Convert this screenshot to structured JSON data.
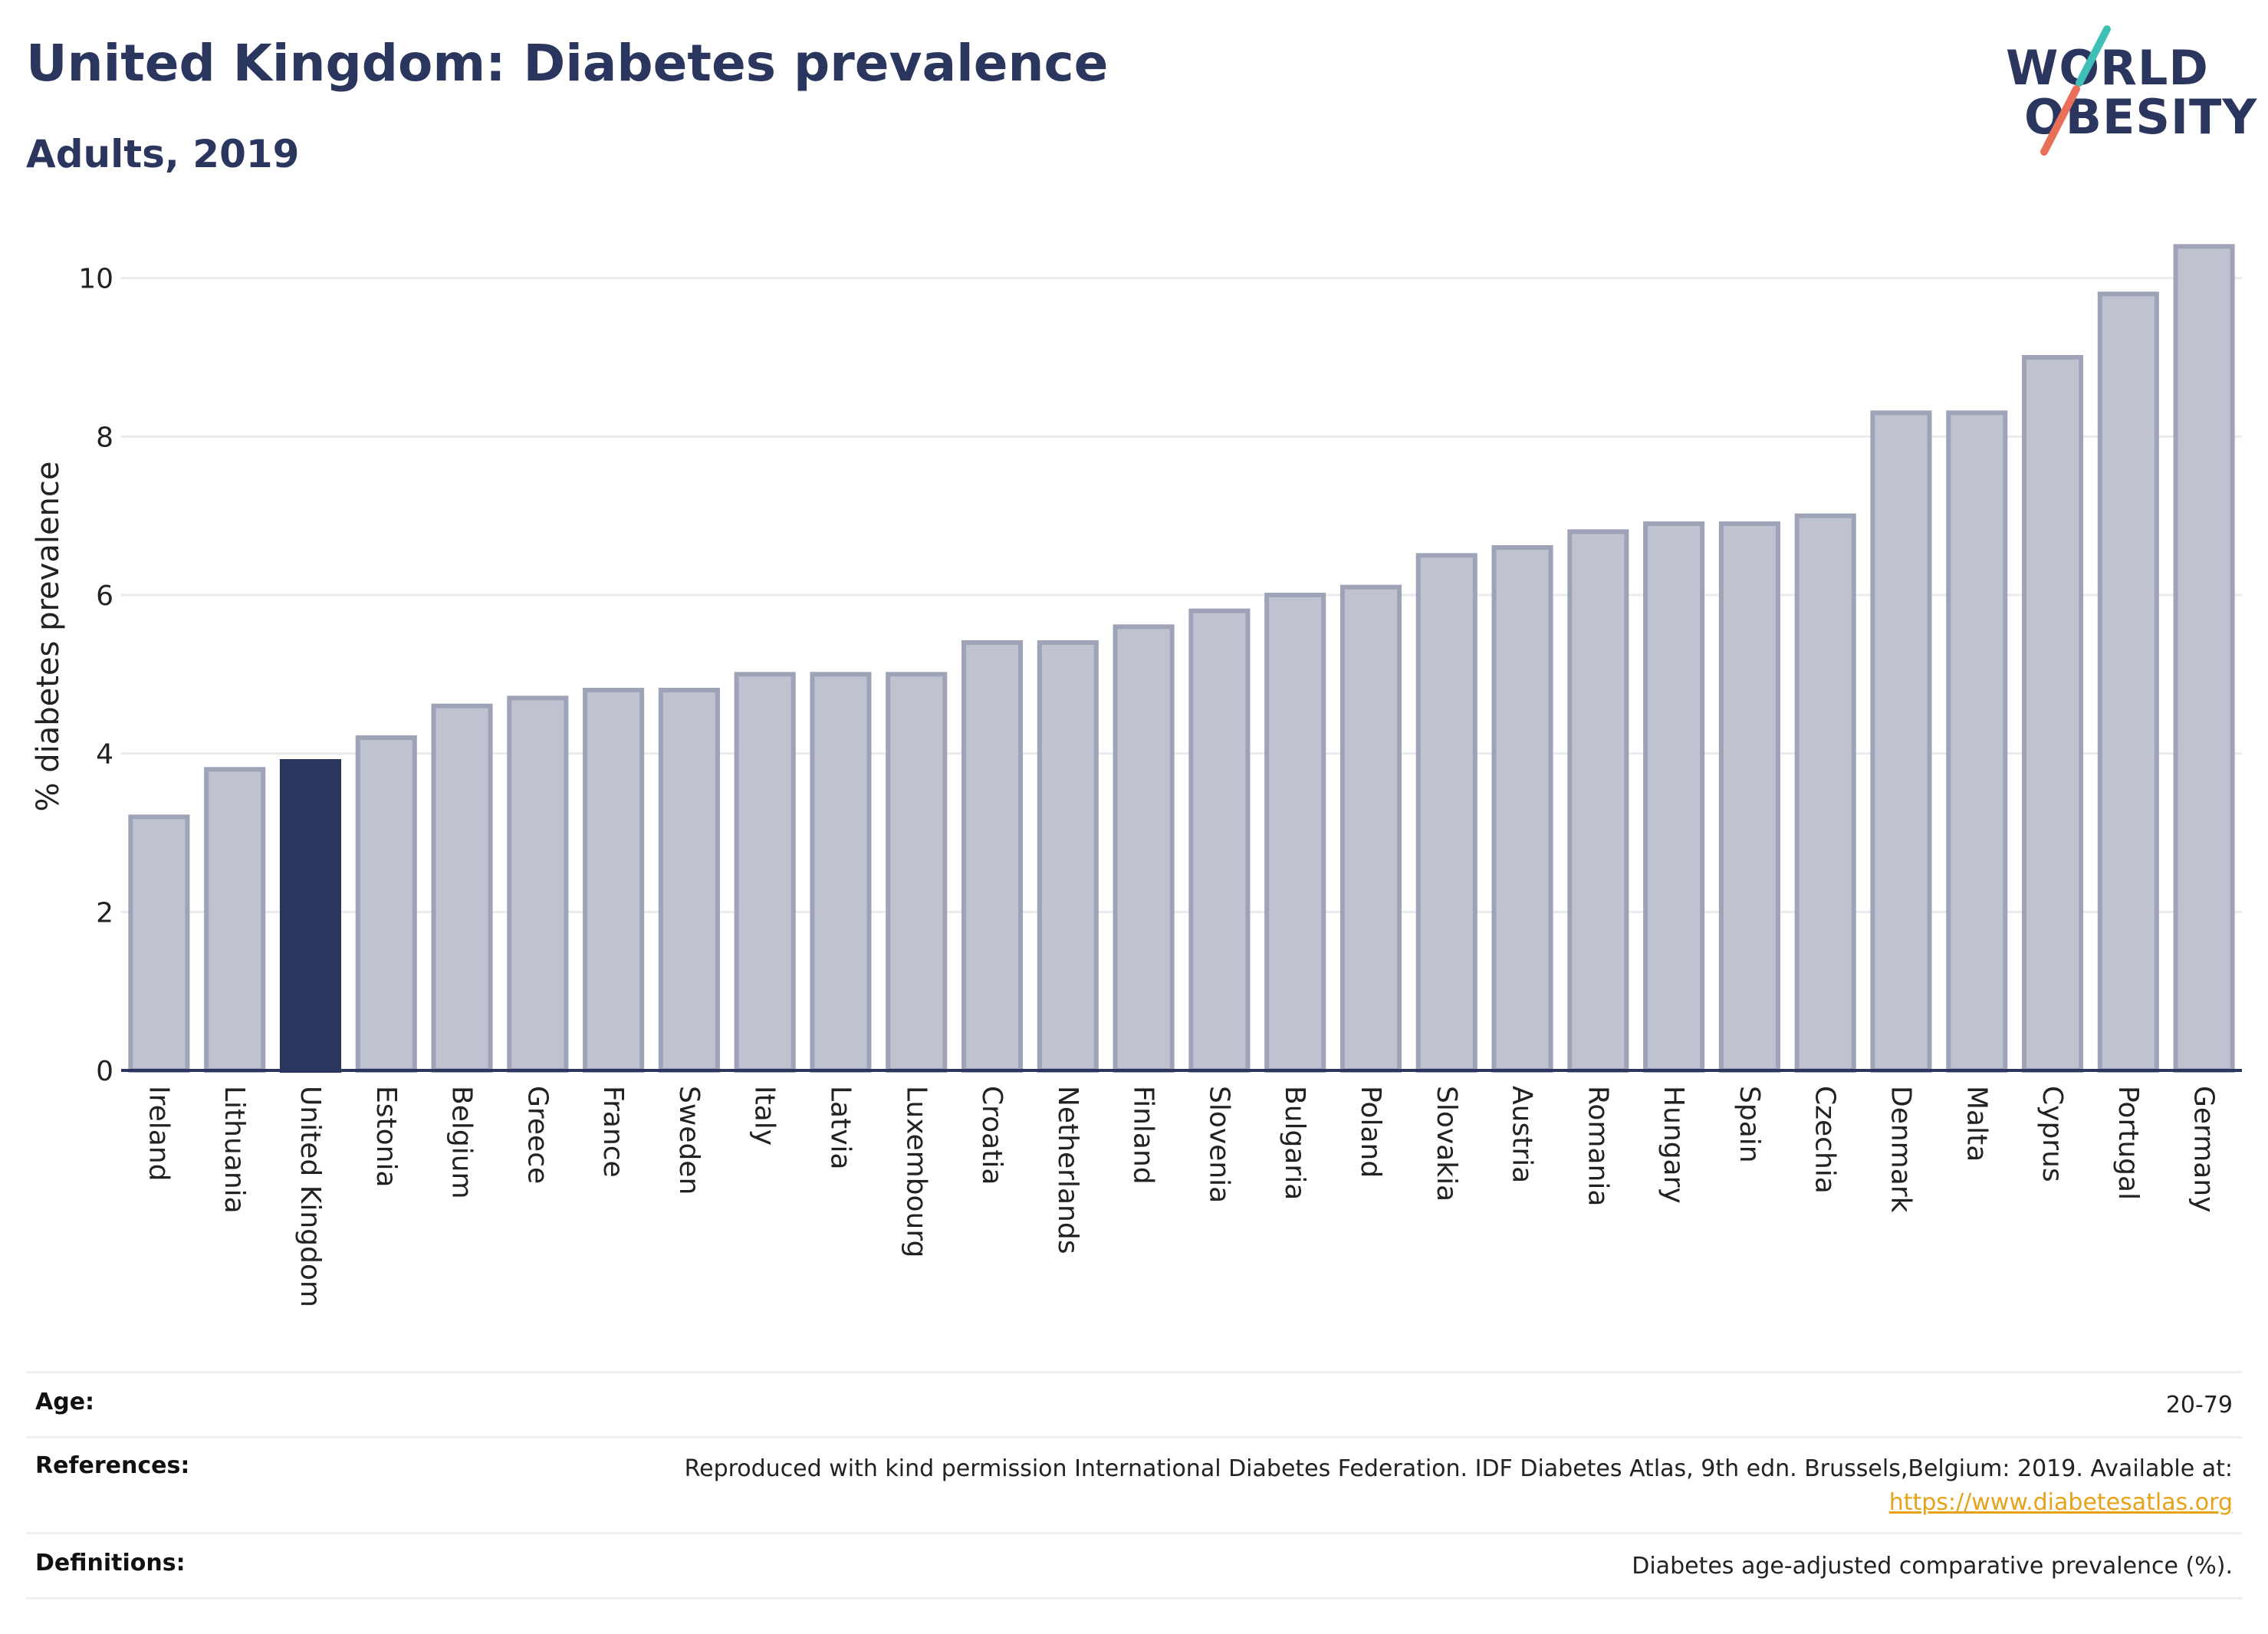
{
  "header": {
    "title": "United Kingdom: Diabetes prevalence",
    "subtitle": "Adults, 2019"
  },
  "logo": {
    "line1": "WORLD",
    "line2": "OBESITY"
  },
  "chart_data": {
    "type": "bar",
    "ylabel": "% diabetes prevalence",
    "xlabel": "",
    "ylim": [
      0,
      10.8
    ],
    "yticks": [
      0,
      2,
      4,
      6,
      8,
      10
    ],
    "grid": true,
    "legend": "none",
    "highlight": "United Kingdom",
    "categories": [
      "Ireland",
      "Lithuania",
      "United Kingdom",
      "Estonia",
      "Belgium",
      "Greece",
      "France",
      "Sweden",
      "Italy",
      "Latvia",
      "Luxembourg",
      "Croatia",
      "Netherlands",
      "Finland",
      "Slovenia",
      "Bulgaria",
      "Poland",
      "Slovakia",
      "Austria",
      "Romania",
      "Hungary",
      "Spain",
      "Czechia",
      "Denmark",
      "Malta",
      "Cyprus",
      "Portugal",
      "Germany"
    ],
    "values": [
      3.2,
      3.8,
      3.9,
      4.2,
      4.6,
      4.7,
      4.8,
      4.8,
      5.0,
      5.0,
      5.0,
      5.4,
      5.4,
      5.6,
      5.8,
      6.0,
      6.1,
      6.5,
      6.6,
      6.8,
      6.9,
      6.9,
      7.0,
      8.3,
      8.3,
      9.0,
      9.8,
      10.4
    ],
    "colors": {
      "bar": "#bfc3d0",
      "bar_border": "#9ea3b8",
      "highlight": "#2b365e",
      "grid": "#e9ebef",
      "axis": "#2b365e"
    }
  },
  "footer": {
    "age_label": "Age:",
    "age_value": "20-79",
    "references_label": "References:",
    "references_text": "Reproduced with kind permission International Diabetes Federation. IDF Diabetes Atlas, 9th edn. Brussels,Belgium: 2019. Available at:",
    "references_link": "https://www.diabetesatlas.org",
    "definitions_label": "Definitions:",
    "definitions_text": "Diabetes age-adjusted comparative prevalence (%)."
  }
}
